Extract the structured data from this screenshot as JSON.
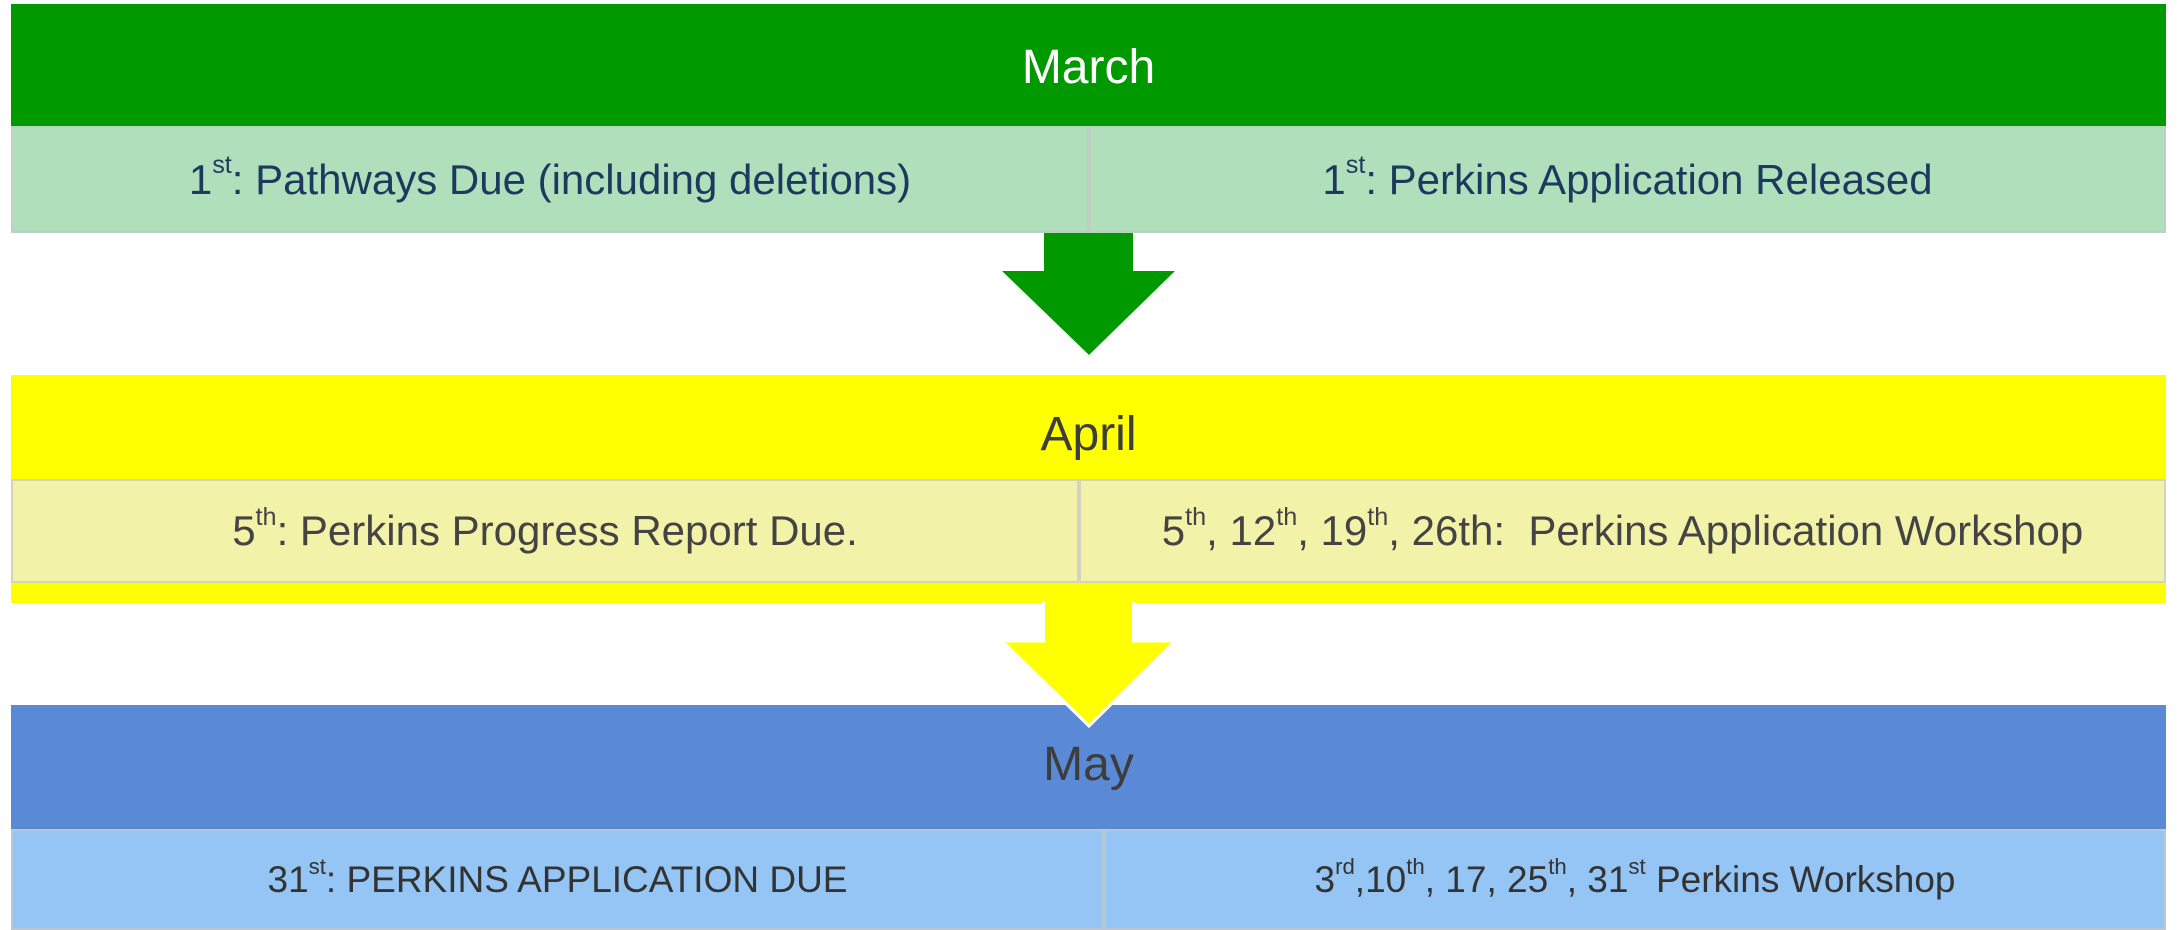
{
  "months": [
    {
      "title": "March",
      "cells": [
        [
          {
            "text": "1"
          },
          {
            "sup": "st"
          },
          {
            "text": ": Pathways Due (including deletions)"
          }
        ],
        [
          {
            "text": "1"
          },
          {
            "sup": "st"
          },
          {
            "text": ": Perkins Application Released"
          }
        ]
      ]
    },
    {
      "title": "April",
      "cells": [
        [
          {
            "text": "5"
          },
          {
            "sup": "th"
          },
          {
            "text": ": Perkins Progress Report Due."
          }
        ],
        [
          {
            "text": "5"
          },
          {
            "sup": "th"
          },
          {
            "text": ", 12"
          },
          {
            "sup": "th"
          },
          {
            "text": ", 19"
          },
          {
            "sup": "th"
          },
          {
            "text": ", 26th:  Perkins Application Workshop"
          }
        ]
      ]
    },
    {
      "title": "May",
      "cells": [
        [
          {
            "text": "31"
          },
          {
            "sup": "st"
          },
          {
            "text": ": PERKINS APPLICATION DUE"
          }
        ],
        [
          {
            "text": "3"
          },
          {
            "sup": "rd"
          },
          {
            "text": ",10"
          },
          {
            "sup": "th"
          },
          {
            "text": ", 17, 25"
          },
          {
            "sup": "th"
          },
          {
            "text": ", 31"
          },
          {
            "sup": "st"
          },
          {
            "text": " Perkins Workshop"
          }
        ]
      ]
    }
  ]
}
